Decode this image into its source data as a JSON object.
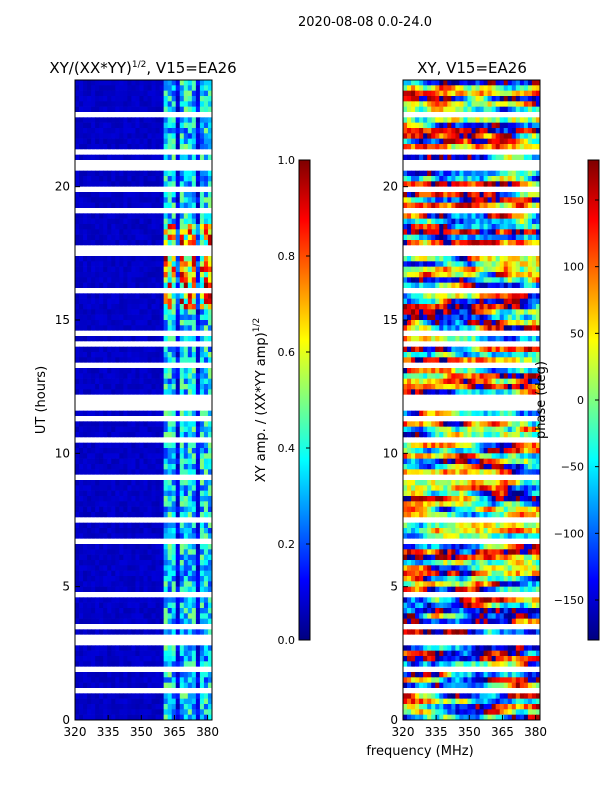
{
  "figure": {
    "suptitle": "2020-08-08 0.0-24.0",
    "shared_xlabel": "frequency (MHz)"
  },
  "colormap": [
    "#00007f",
    "#0000ff",
    "#007fff",
    "#00ffff",
    "#7fff7f",
    "#ffff00",
    "#ff7f00",
    "#ff0000",
    "#7f0000"
  ],
  "chart_data": [
    {
      "type": "heatmap",
      "title_main": "XY/(XX*YY)",
      "title_sup": "1/2",
      "title_tail": ", V15=EA26",
      "xlabel": "",
      "ylabel": "UT (hours)",
      "xlim": [
        320,
        382
      ],
      "ylim": [
        0,
        24
      ],
      "xticks": [
        320,
        335,
        350,
        365,
        380
      ],
      "yticks": [
        0,
        5,
        10,
        15,
        20
      ],
      "colorbar": {
        "label_main": "XY amp. / (XX*YY amp)",
        "label_sup": "1/2",
        "range": [
          0.0,
          1.0
        ],
        "ticks": [
          "0.0",
          "0.2",
          "0.4",
          "0.6",
          "0.8",
          "1.0"
        ],
        "tick_values": [
          0.0,
          0.2,
          0.4,
          0.6,
          0.8,
          1.0
        ]
      },
      "description_values": {
        "low_band_MHz": [
          320,
          360
        ],
        "low_band_typical": 0.05,
        "high_band_MHz": [
          360,
          382
        ],
        "high_band_typical": 0.4,
        "peak_UT_hours": [
          15.5,
          18.5
        ],
        "peak_value": 0.85
      }
    },
    {
      "type": "heatmap",
      "title_main": "XY, V15=EA26",
      "title_sup": "",
      "title_tail": "",
      "xlabel": "frequency (MHz)",
      "ylabel": "",
      "xlim": [
        320,
        382
      ],
      "ylim": [
        0,
        24
      ],
      "xticks": [
        320,
        335,
        350,
        365,
        380
      ],
      "yticks": [
        0,
        5,
        10,
        15,
        20
      ],
      "colorbar": {
        "label_main": "phase (deg)",
        "label_sup": "",
        "range": [
          -180,
          180
        ],
        "ticks": [
          "−150",
          "−100",
          "−50",
          "0",
          "50",
          "100",
          "150"
        ],
        "tick_values": [
          -150,
          -100,
          -50,
          0,
          50,
          100,
          150
        ]
      },
      "description_values": {
        "phase_range_deg": [
          -180,
          180
        ]
      }
    }
  ]
}
